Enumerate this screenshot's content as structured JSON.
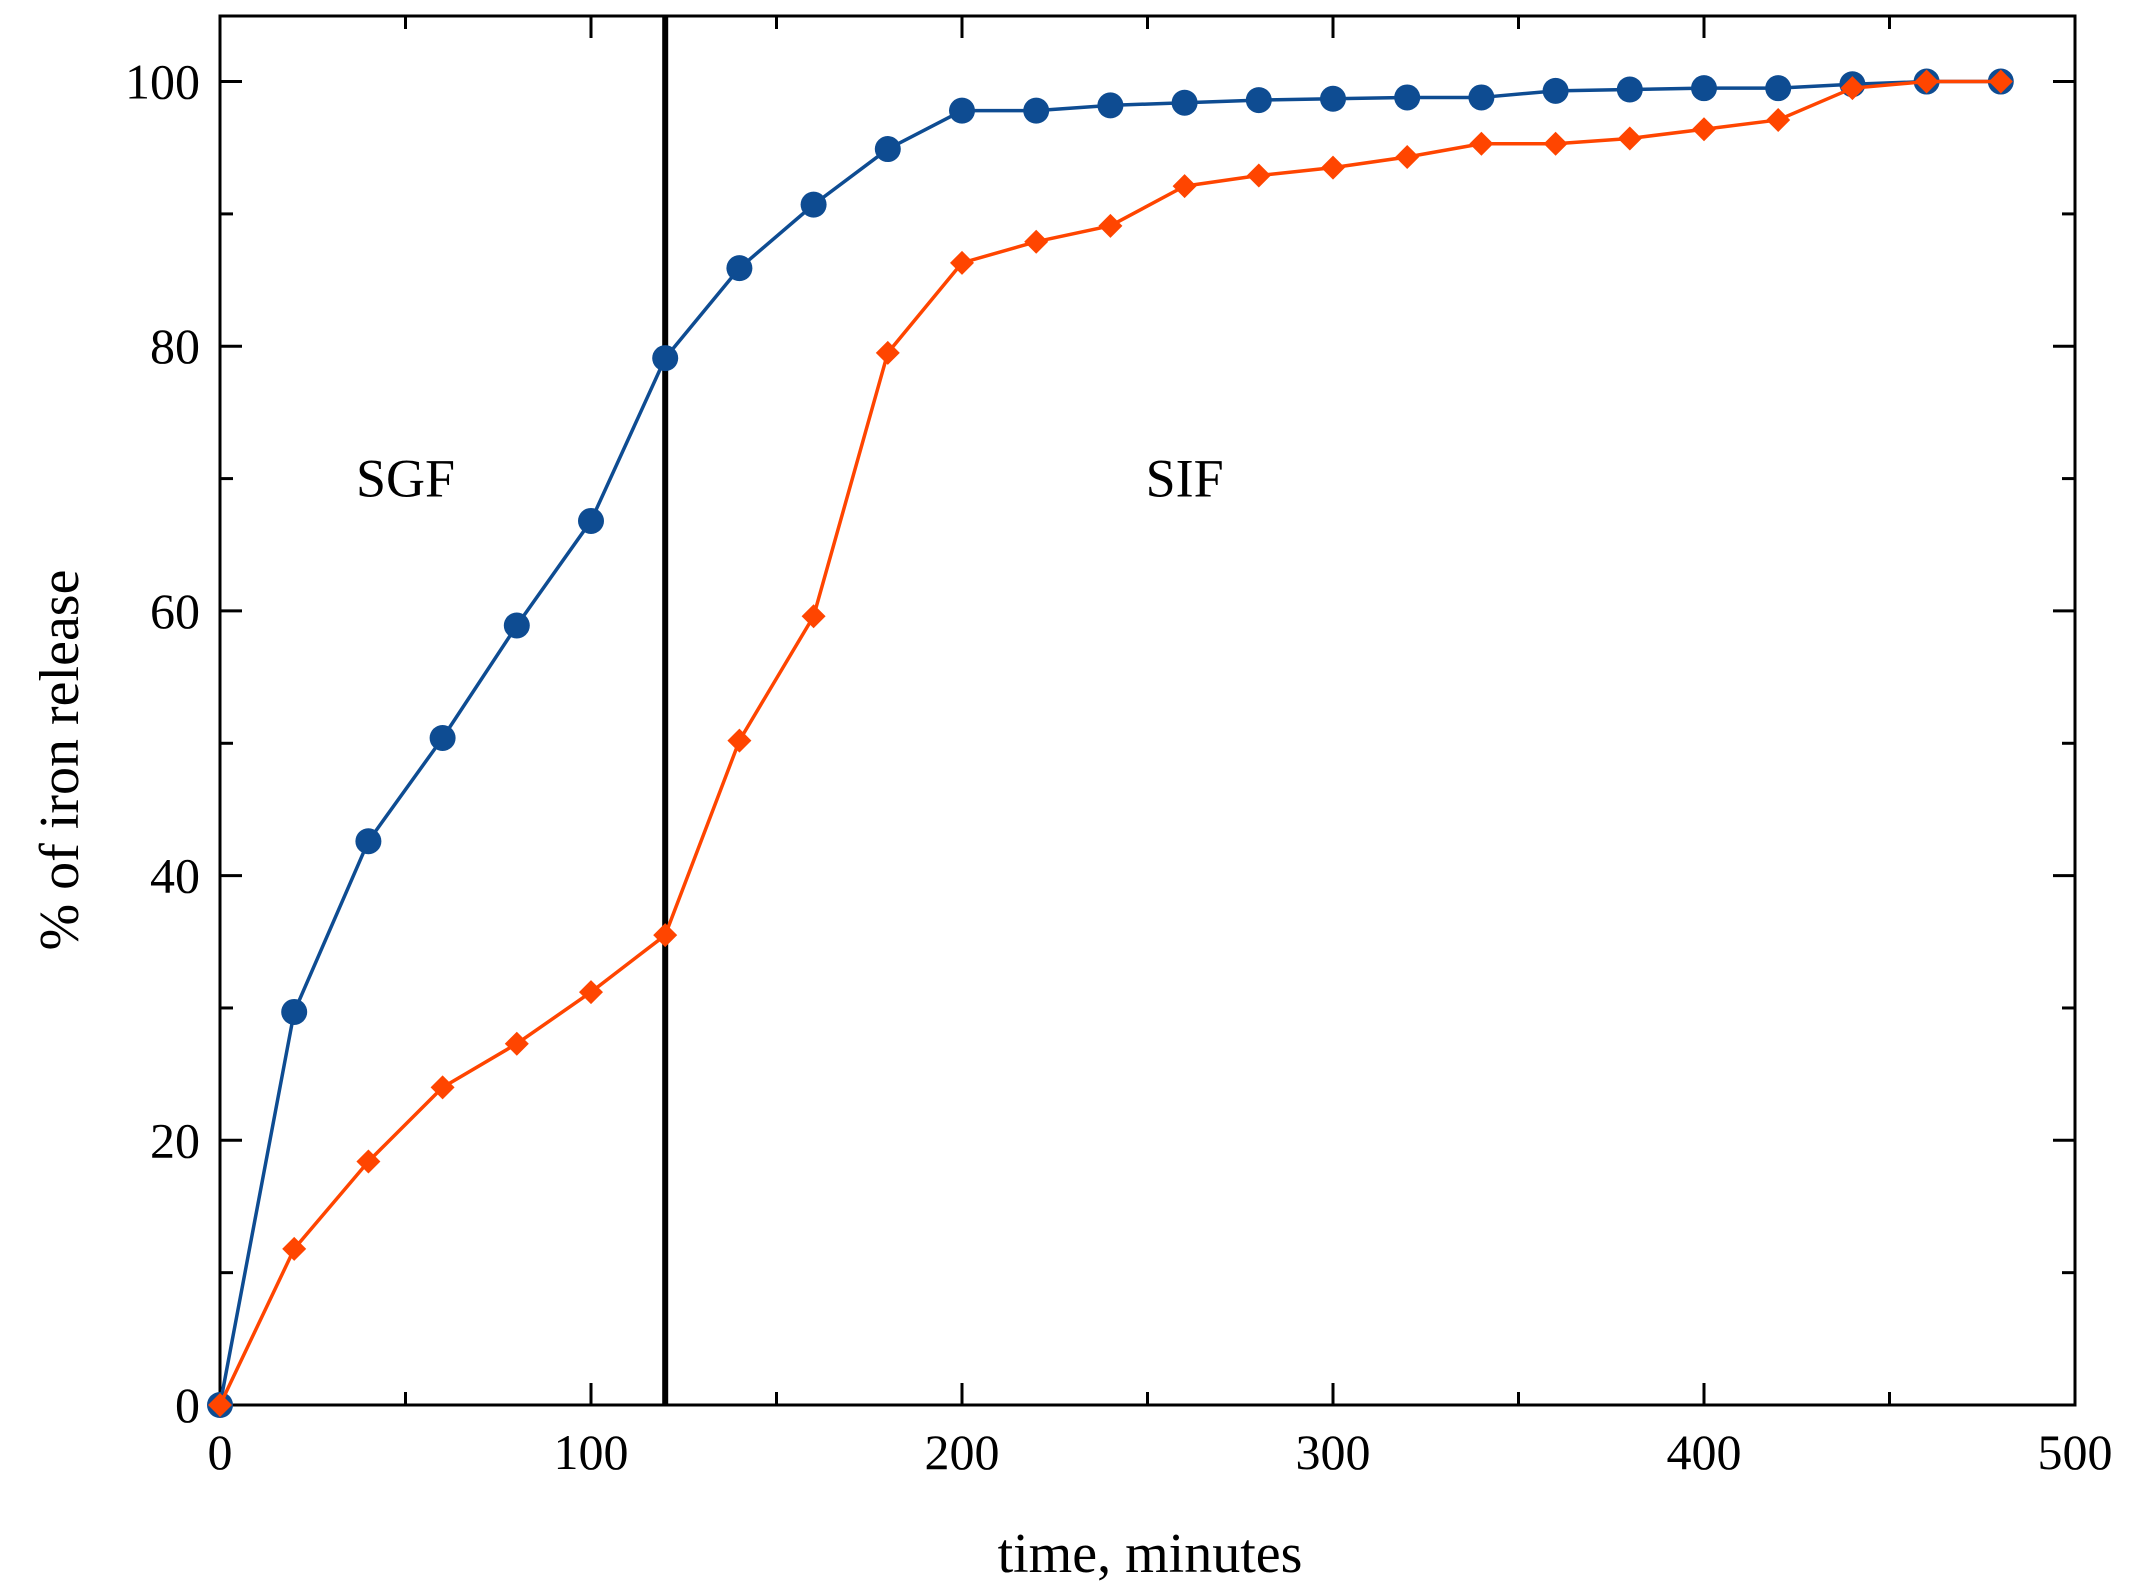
{
  "chart_data": {
    "type": "line",
    "title": "",
    "xlabel": "time, minutes",
    "ylabel": "% of iron release",
    "xlim": [
      0,
      500
    ],
    "ylim": [
      0,
      100
    ],
    "xticks": [
      0,
      100,
      200,
      300,
      400,
      500
    ],
    "xticks_minor": [
      50,
      150,
      250,
      350,
      450
    ],
    "yticks": [
      0,
      20,
      40,
      60,
      80,
      100
    ],
    "yticks_minor": [
      10,
      30,
      50,
      70,
      90
    ],
    "grid": false,
    "divider_x": 120,
    "annotations": [
      {
        "text": "SGF",
        "x": 50,
        "y": 70
      },
      {
        "text": "SIF",
        "x": 260,
        "y": 70
      }
    ],
    "series": [
      {
        "name": "series-blue",
        "color": "#0e4c92",
        "marker": "circle",
        "x": [
          0,
          20,
          40,
          60,
          80,
          100,
          120,
          140,
          160,
          180,
          200,
          220,
          240,
          260,
          280,
          300,
          320,
          340,
          360,
          380,
          400,
          420,
          440,
          460,
          480
        ],
        "values": [
          0,
          29.7,
          42.6,
          50.4,
          58.9,
          66.8,
          79.1,
          85.9,
          90.7,
          94.9,
          97.8,
          97.8,
          98.2,
          98.4,
          98.6,
          98.7,
          98.8,
          98.8,
          99.3,
          99.4,
          99.5,
          99.5,
          99.8,
          100,
          100
        ]
      },
      {
        "name": "series-orange",
        "color": "#ff4500",
        "marker": "diamond",
        "x": [
          0,
          20,
          40,
          60,
          80,
          100,
          120,
          140,
          160,
          180,
          200,
          220,
          240,
          260,
          280,
          300,
          320,
          340,
          360,
          380,
          400,
          420,
          440,
          460,
          480
        ],
        "values": [
          0,
          11.8,
          18.4,
          24,
          27.3,
          31.2,
          35.5,
          50.2,
          59.6,
          79.5,
          86.3,
          87.9,
          89.1,
          92.1,
          92.9,
          93.5,
          94.3,
          95.3,
          95.3,
          95.7,
          96.4,
          97.1,
          99.5,
          100,
          100
        ]
      }
    ]
  }
}
